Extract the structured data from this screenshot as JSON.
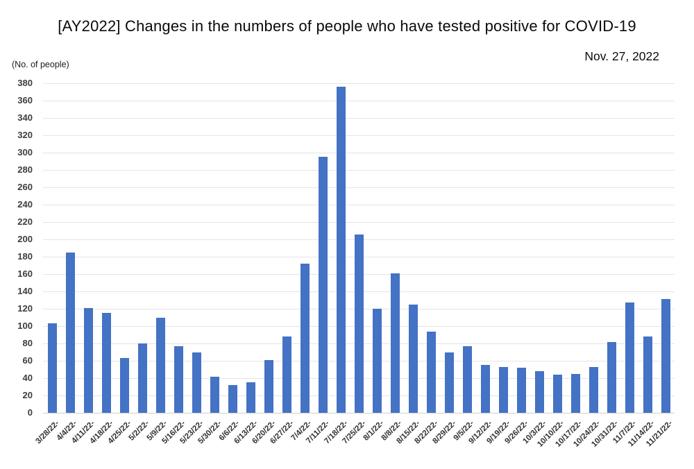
{
  "header": {
    "title": "[AY2022] Changes in the numbers of people who have tested positive for COVID-19",
    "date": "Nov. 27, 2022",
    "y_axis_unit": "(No. of people)"
  },
  "colors": {
    "bar": "#4472c4",
    "gridline": "#e4e4e4",
    "axis_line": "#cfcfcf",
    "tick_label": "#3d3d3d",
    "title": "#0a0a0a"
  },
  "chart_data": {
    "type": "bar",
    "title": "[AY2022] Changes in the numbers of people who have tested positive for COVID-19",
    "annotation": "Nov. 27, 2022",
    "ylabel": "(No. of people)",
    "xlabel": "",
    "grid": true,
    "legend": false,
    "ylim": [
      0,
      380
    ],
    "ytick_step": 20,
    "yticks": [
      0,
      20,
      40,
      60,
      80,
      100,
      120,
      140,
      160,
      180,
      200,
      220,
      240,
      260,
      280,
      300,
      320,
      340,
      360,
      380
    ],
    "categories": [
      "3/28/22-",
      "4/4/22-",
      "4/11/22-",
      "4/18/22-",
      "4/25/22-",
      "5/2/22-",
      "5/9/22-",
      "5/16/22-",
      "5/23/22-",
      "5/30/22-",
      "6/6/22-",
      "6/13/22-",
      "6/20/22-",
      "6/27/22-",
      "7/4/22-",
      "7/11/22-",
      "7/18/22-",
      "7/25/22-",
      "8/1/22-",
      "8/8/22-",
      "8/15/22-",
      "8/22/22-",
      "8/29/22-",
      "9/5/22-",
      "9/12/22-",
      "9/19/22-",
      "9/26/22-",
      "10/3/22-",
      "10/10/22-",
      "10/17/22-",
      "10/24/22-",
      "10/31/22-",
      "11/7/22-",
      "11/14/22-",
      "11/21/22-"
    ],
    "values": [
      103,
      185,
      121,
      115,
      63,
      80,
      110,
      77,
      70,
      42,
      32,
      35,
      61,
      88,
      172,
      295,
      376,
      206,
      120,
      161,
      125,
      94,
      70,
      77,
      55,
      53,
      52,
      48,
      44,
      45,
      53,
      82,
      127,
      88,
      131
    ]
  }
}
